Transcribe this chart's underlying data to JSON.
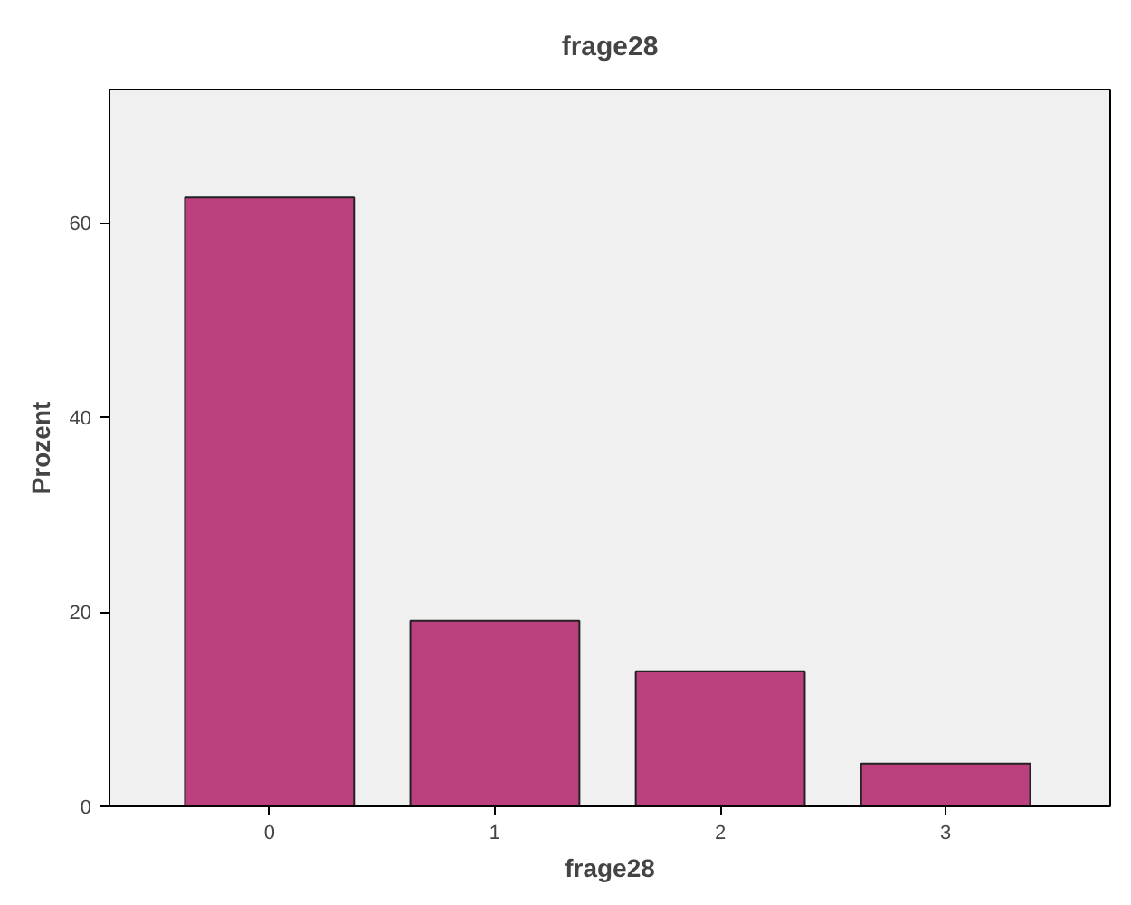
{
  "chart_data": {
    "type": "bar",
    "title": "frage28",
    "xlabel": "frage28",
    "ylabel": "Prozent",
    "categories": [
      "0",
      "1",
      "2",
      "3"
    ],
    "values": [
      62.6,
      19.1,
      13.9,
      4.4
    ],
    "color": "#bc3f7e",
    "ylim": [
      0,
      73.7
    ],
    "yticks": [
      0,
      20,
      40,
      60
    ],
    "grid": false
  }
}
